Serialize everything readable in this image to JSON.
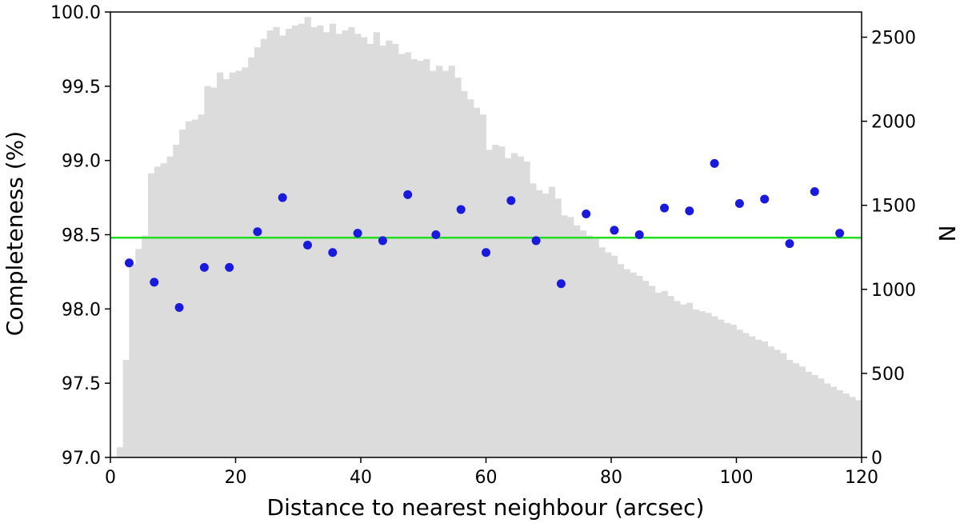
{
  "chart_data": {
    "type": "scatter",
    "xlabel": "Distance to nearest neighbour (arcsec)",
    "ylabel": "Completeness (%)",
    "y2label": "N",
    "xlim": [
      0,
      120
    ],
    "ylim": [
      97.0,
      100.0
    ],
    "y2lim": [
      0,
      2650
    ],
    "x_ticks": [
      0,
      20,
      40,
      60,
      80,
      100,
      120
    ],
    "x_tick_labels": [
      "0",
      "20",
      "40",
      "60",
      "80",
      "100",
      "120"
    ],
    "y_ticks": [
      97.0,
      97.5,
      98.0,
      98.5,
      99.0,
      99.5,
      100.0
    ],
    "y_tick_labels": [
      "97.0",
      "97.5",
      "98.0",
      "98.5",
      "99.0",
      "99.5",
      "100.0"
    ],
    "y2_ticks": [
      0,
      500,
      1000,
      1500,
      2000,
      2500
    ],
    "y2_tick_labels": [
      "0",
      "500",
      "1000",
      "1500",
      "2000",
      "2500"
    ],
    "grid": false,
    "mean_line": {
      "y": 98.48,
      "color": "#22dd22"
    },
    "histogram": {
      "bin_width": 1,
      "bin_start": 0,
      "color": "#dcdcdc",
      "counts": [
        0,
        60,
        580,
        1150,
        1240,
        1320,
        1690,
        1730,
        1750,
        1790,
        1860,
        1950,
        2000,
        2010,
        2040,
        2210,
        2200,
        2290,
        2250,
        2290,
        2300,
        2320,
        2380,
        2440,
        2490,
        2540,
        2560,
        2510,
        2550,
        2570,
        2580,
        2620,
        2560,
        2570,
        2530,
        2580,
        2520,
        2540,
        2560,
        2520,
        2500,
        2460,
        2530,
        2450,
        2480,
        2460,
        2400,
        2410,
        2370,
        2360,
        2370,
        2300,
        2330,
        2300,
        2330,
        2260,
        2180,
        2130,
        2080,
        2040,
        1830,
        1860,
        1850,
        1780,
        1810,
        1790,
        1760,
        1630,
        1590,
        1570,
        1610,
        1540,
        1440,
        1430,
        1380,
        1350,
        1320,
        1300,
        1250,
        1220,
        1200,
        1150,
        1120,
        1100,
        1080,
        1050,
        1020,
        980,
        990,
        960,
        930,
        910,
        920,
        880,
        870,
        860,
        840,
        820,
        800,
        790,
        760,
        740,
        720,
        700,
        690,
        660,
        640,
        620,
        580,
        560,
        540,
        510,
        490,
        470,
        440,
        420,
        400,
        380,
        360,
        340
      ]
    },
    "series": [
      {
        "color": "#1a1adc",
        "x": [
          3,
          7,
          11,
          15,
          19,
          23.5,
          27.5,
          31.5,
          35.5,
          39.5,
          43.5,
          47.5,
          52,
          56,
          60,
          64,
          68,
          72,
          76,
          80.5,
          84.5,
          88.5,
          92.5,
          96.5,
          100.5,
          104.5,
          108.5,
          112.5,
          116.5
        ],
        "y": [
          98.31,
          98.18,
          98.01,
          98.28,
          98.28,
          98.52,
          98.75,
          98.43,
          98.38,
          98.51,
          98.46,
          98.77,
          98.5,
          98.67,
          98.38,
          98.73,
          98.46,
          98.17,
          98.64,
          98.53,
          98.5,
          98.68,
          98.66,
          98.98,
          98.71,
          98.74,
          98.44,
          98.79,
          98.51
        ]
      }
    ]
  }
}
